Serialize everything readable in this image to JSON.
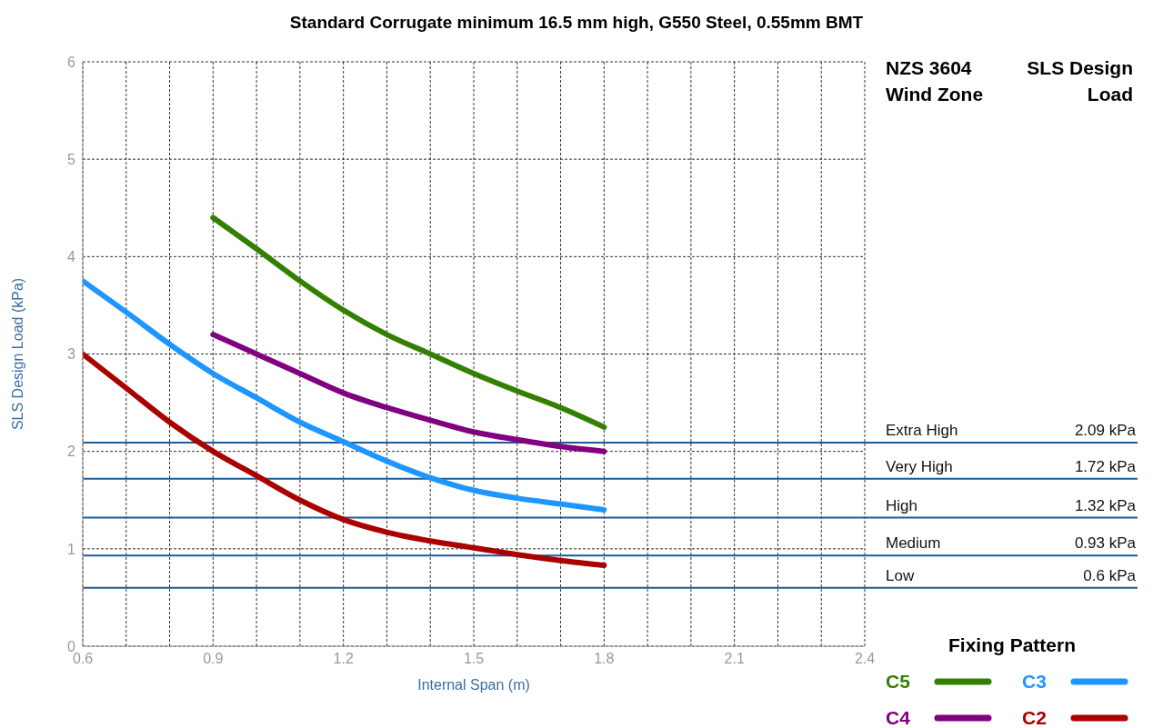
{
  "chart_data": {
    "type": "line",
    "title": "Standard Corrugate minimum 16.5 mm high, G550 Steel, 0.55mm BMT",
    "xlabel": "Internal Span (m)",
    "ylabel": "SLS Design Load (kPa)",
    "legend_title": "Fixing Pattern",
    "x": [
      0.6,
      0.7,
      0.8,
      0.9,
      1.0,
      1.1,
      1.2,
      1.3,
      1.4,
      1.5,
      1.6,
      1.7,
      1.8
    ],
    "series": [
      {
        "name": "C5",
        "color": "#338000",
        "values": [
          null,
          null,
          null,
          4.4,
          4.08,
          3.75,
          3.45,
          3.2,
          3.0,
          2.8,
          2.62,
          2.45,
          2.25
        ]
      },
      {
        "name": "C4",
        "color": "#800080",
        "values": [
          null,
          null,
          null,
          3.2,
          3.0,
          2.8,
          2.6,
          2.45,
          2.32,
          2.2,
          2.12,
          2.05,
          2.0
        ]
      },
      {
        "name": "C3",
        "color": "#1e96ff",
        "values": [
          3.75,
          3.43,
          3.1,
          2.8,
          2.55,
          2.3,
          2.1,
          1.9,
          1.73,
          1.6,
          1.52,
          1.46,
          1.4
        ]
      },
      {
        "name": "C2",
        "color": "#aa0000",
        "values": [
          3.0,
          2.65,
          2.3,
          2.0,
          1.75,
          1.5,
          1.3,
          1.17,
          1.08,
          1.01,
          0.94,
          0.88,
          0.83
        ]
      }
    ],
    "xlim": [
      0.6,
      2.4
    ],
    "xticks": [
      0.6,
      {
        "value": 0.7,
        "label": null
      },
      {
        "value": 0.8,
        "label": null
      },
      0.9,
      {
        "value": 1.0,
        "label": null
      },
      {
        "value": 1.1,
        "label": null
      },
      1.2,
      {
        "value": 1.3,
        "label": null
      },
      {
        "value": 1.4,
        "label": null
      },
      1.5,
      {
        "value": 1.6,
        "label": null
      },
      {
        "value": 1.7,
        "label": null
      },
      1.8,
      {
        "value": 1.9,
        "label": null
      },
      {
        "value": 2.0,
        "label": null
      },
      2.1,
      {
        "value": 2.2,
        "label": null
      },
      {
        "value": 2.3,
        "label": null
      },
      2.4
    ],
    "ylim": [
      0,
      6
    ],
    "yticks": [
      0,
      1,
      2,
      3,
      4,
      5,
      6
    ],
    "grid": true,
    "legend": "bottom right",
    "marker": "none",
    "line_style": "solid",
    "ref_lines": [
      {
        "axis": "y",
        "value": 2.09,
        "label": "Extra High",
        "color": "#1f5a96"
      },
      {
        "axis": "y",
        "value": 1.72,
        "label": "Very High",
        "color": "#1f5a96"
      },
      {
        "axis": "y",
        "value": 1.32,
        "label": "High",
        "color": "#1f5a96"
      },
      {
        "axis": "y",
        "value": 0.93,
        "label": "Medium",
        "color": "#1f5a96"
      },
      {
        "axis": "y",
        "value": 0.6,
        "label": "Low",
        "color": "#1f5a96"
      }
    ],
    "annotations": [
      "NZS 3604 Wind Zone",
      "SLS Design Load",
      "2.09 kPa",
      "1.72 kPa",
      "1.32 kPa",
      "0.93 kPa",
      "0.6 kPa"
    ]
  }
}
